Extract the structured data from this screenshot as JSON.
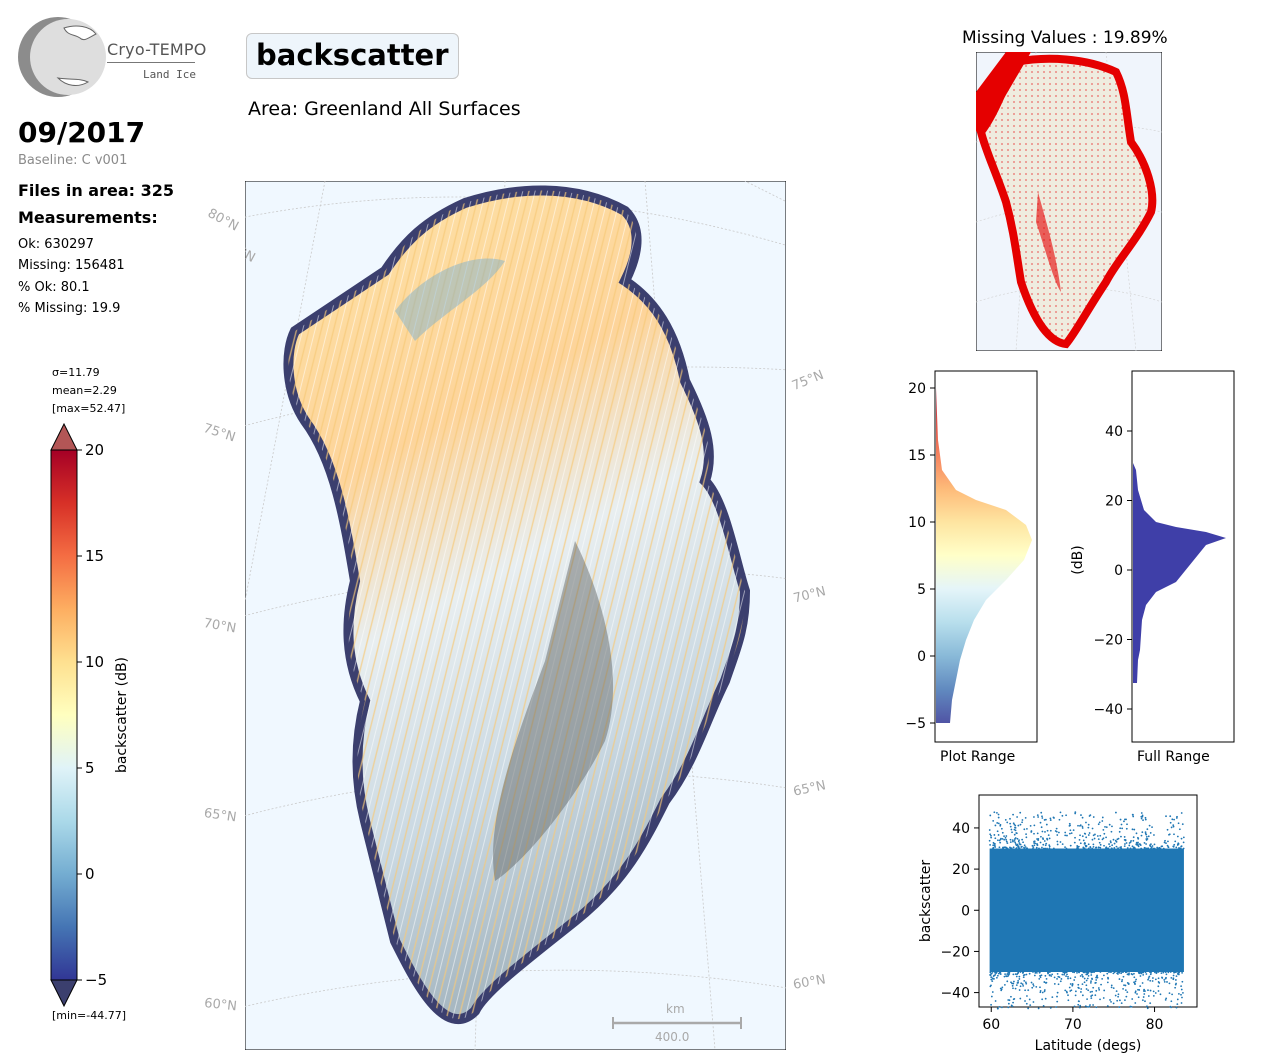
{
  "logo": {
    "name": "Cryo-TEMPO",
    "subtitle": "Land Ice"
  },
  "header": {
    "title": "backscatter",
    "area": "Area: Greenland All Surfaces"
  },
  "info": {
    "date": "09/2017",
    "baseline": "Baseline: C v001",
    "files": "Files in area: 325",
    "measurements_heading": "Measurements:",
    "ok": "Ok: 630297",
    "missing": "Missing: 156481",
    "pct_ok": "% Ok: 80.1",
    "pct_missing": "% Missing: 19.9"
  },
  "colorbar": {
    "sigma": "σ=11.79",
    "mean": "mean=2.29",
    "max": "[max=52.47]",
    "min": "[min=-44.77]",
    "label": "backscatter (dB)",
    "ticks": [
      "20",
      "15",
      "10",
      "5",
      "0",
      "−5"
    ],
    "range": [
      -5,
      20
    ],
    "colors": [
      "#313695",
      "#4575b4",
      "#74add1",
      "#abd9e9",
      "#e0f3f8",
      "#ffffbf",
      "#fee090",
      "#fdae61",
      "#f46d43",
      "#d73027",
      "#a50026"
    ]
  },
  "map": {
    "lat_labels_left": [
      "80°N",
      "75°N",
      "70°N",
      "65°N",
      "60°N"
    ],
    "lat_labels_right": [
      "75°N",
      "70°N",
      "65°N",
      "60°N"
    ],
    "scale_unit": "km",
    "scale_value": "400.0",
    "ocean_color": "#f0f8ff"
  },
  "missing_map": {
    "title": "Missing Values : 19.89%",
    "land_color": "#efecdf",
    "missing_color": "#e50000"
  },
  "hist_plot_range": {
    "xlabel": "Plot Range",
    "yticks": [
      "20",
      "15",
      "10",
      "5",
      "0",
      "−5"
    ],
    "range": [
      -5,
      21
    ]
  },
  "hist_full_range": {
    "xlabel": "Full Range",
    "ylabel": "(dB)",
    "yticks": [
      "40",
      "20",
      "0",
      "−20",
      "−40"
    ],
    "range": [
      -49,
      57
    ],
    "bar_color": "#3f3fa8"
  },
  "chart_data": {
    "type": "scatter",
    "xlabel": "Latitude (degs)",
    "ylabel": "backscatter",
    "xticks": [
      "60",
      "70",
      "80"
    ],
    "yticks": [
      "40",
      "20",
      "0",
      "−20",
      "−40"
    ],
    "xlim": [
      58.5,
      85.2
    ],
    "ylim": [
      -47,
      56
    ],
    "color": "#1f77b4",
    "x_range": [
      59.8,
      83.6
    ],
    "y_range": [
      -44.77,
      52.47
    ]
  }
}
